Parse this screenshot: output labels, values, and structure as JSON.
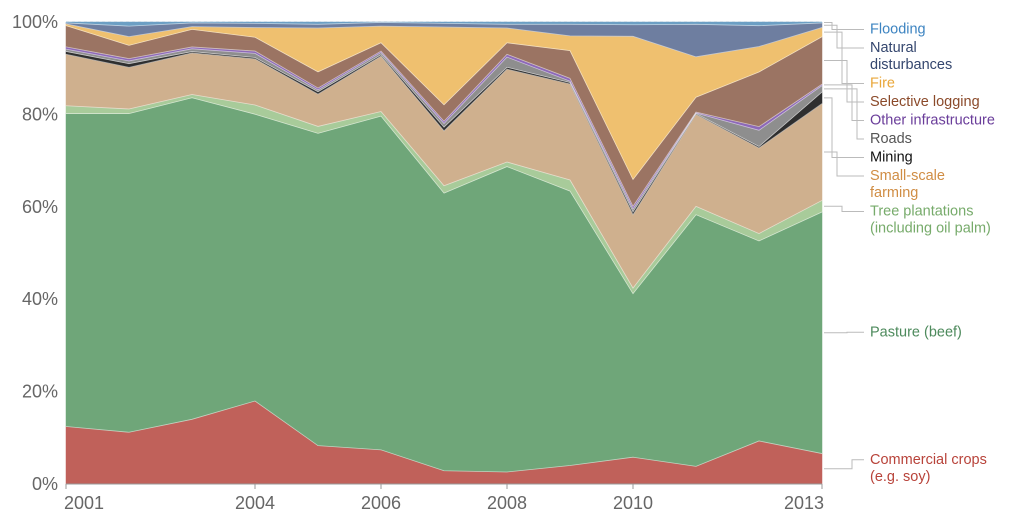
{
  "chart_data": {
    "type": "area",
    "stacked": true,
    "normalized": true,
    "x": [
      2001,
      2002,
      2003,
      2004,
      2005,
      2006,
      2007,
      2008,
      2009,
      2010,
      2011,
      2012,
      2013
    ],
    "x_tick_labels": [
      "2001",
      "2004",
      "2006",
      "2008",
      "2010",
      "2013"
    ],
    "x_tick_values": [
      2001,
      2004,
      2006,
      2008,
      2010,
      2013
    ],
    "y_tick_labels": [
      "0%",
      "20%",
      "40%",
      "60%",
      "80%",
      "100%"
    ],
    "y_tick_values": [
      0,
      20,
      40,
      60,
      80,
      100
    ],
    "ylim": [
      0,
      100
    ],
    "grid": true,
    "legend_placement": "right",
    "series": [
      {
        "name": "Commercial crops (e.g. soy)",
        "legend_lines": [
          "Commercial crops",
          "(e.g. soy)"
        ],
        "color": "#c0615a",
        "label_color": "#b8433a",
        "values": [
          12.5,
          11.3,
          14.0,
          18.0,
          8.3,
          7.4,
          2.9,
          2.6,
          4.0,
          5.8,
          3.8,
          9.3,
          6.6
        ]
      },
      {
        "name": "Pasture (beef)",
        "legend_lines": [
          "Pasture (beef)"
        ],
        "color": "#6fa679",
        "label_color": "#4d8a5c",
        "values": [
          68.0,
          69.6,
          69.6,
          62.2,
          67.6,
          72.3,
          60.7,
          66.1,
          59.4,
          35.4,
          54.2,
          43.2,
          52.4
        ]
      },
      {
        "name": "Tree plantations (including oil palm)",
        "legend_lines": [
          "Tree plantations",
          "(including oil palm)"
        ],
        "color": "#a8cb9a",
        "label_color": "#77ab6b",
        "values": [
          1.7,
          1.0,
          0.7,
          2.0,
          1.5,
          1.0,
          1.6,
          1.0,
          2.4,
          1.2,
          1.8,
          1.6,
          2.5
        ]
      },
      {
        "name": "Small-scale farming",
        "legend_lines": [
          "Small-scale",
          "farming"
        ],
        "color": "#cfb08e",
        "label_color": "#d08d44",
        "values": [
          11.2,
          9.1,
          9.0,
          10.0,
          7.0,
          12.0,
          12.0,
          20.1,
          20.8,
          15.9,
          19.8,
          18.5,
          21.0
        ]
      },
      {
        "name": "Mining",
        "legend_lines": [
          "Mining"
        ],
        "color": "#2f2f2f",
        "label_color": "#111111",
        "values": [
          0.6,
          0.8,
          0.3,
          0.3,
          0.5,
          0.3,
          0.8,
          0.4,
          0.3,
          0.6,
          0.2,
          0.3,
          2.5
        ]
      },
      {
        "name": "Roads",
        "legend_lines": [
          "Roads"
        ],
        "color": "#8e8e8e",
        "label_color": "#555555",
        "values": [
          0.5,
          0.6,
          0.6,
          0.9,
          0.4,
          0.5,
          0.8,
          2.2,
          0.3,
          0.6,
          0.1,
          3.5,
          1.4
        ]
      },
      {
        "name": "Other infrastructure",
        "legend_lines": [
          "Other infrastructure"
        ],
        "color": "#8d69b8",
        "label_color": "#6a3d9a",
        "values": [
          0.5,
          0.5,
          0.4,
          0.5,
          0.4,
          0.3,
          0.5,
          0.6,
          0.6,
          0.6,
          0.2,
          0.8,
          0.3
        ]
      },
      {
        "name": "Selective logging",
        "legend_lines": [
          "Selective logging"
        ],
        "color": "#9b7463",
        "label_color": "#8b4a2a",
        "values": [
          4.6,
          2.9,
          3.8,
          3.0,
          3.5,
          1.8,
          3.6,
          2.5,
          6.0,
          5.8,
          3.2,
          11.8,
          10.3
        ]
      },
      {
        "name": "Fire",
        "legend_lines": [
          "Fire"
        ],
        "color": "#efc06f",
        "label_color": "#e9a73a",
        "values": [
          0.4,
          1.9,
          0.6,
          2.1,
          9.5,
          3.6,
          17.0,
          3.2,
          3.2,
          31.0,
          8.7,
          5.5,
          2.0
        ]
      },
      {
        "name": "Natural disturbances",
        "legend_lines": [
          "Natural",
          "disturbances"
        ],
        "color": "#6e7ea0",
        "label_color": "#34466e",
        "values": [
          0.2,
          2.3,
          0.8,
          0.9,
          0.8,
          0.8,
          0.8,
          0.8,
          2.5,
          2.5,
          7.0,
          4.5,
          1.0
        ]
      },
      {
        "name": "Flooding",
        "legend_lines": [
          "Flooding"
        ],
        "color": "#6c9fc4",
        "label_color": "#3d84c1",
        "values": [
          0.2,
          0.9,
          0.2,
          0.3,
          0.5,
          0.1,
          0.3,
          0.5,
          0.5,
          0.6,
          0.5,
          0.8,
          0.2
        ]
      }
    ]
  }
}
